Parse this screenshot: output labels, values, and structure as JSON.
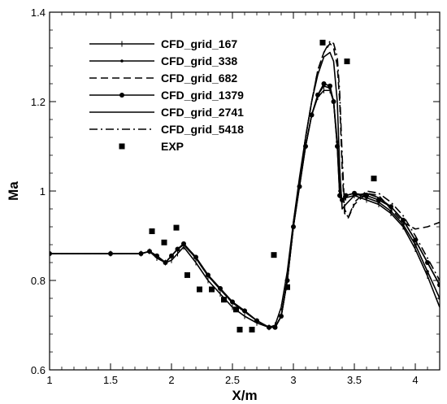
{
  "chart_data": {
    "type": "line",
    "xlabel": "X/m",
    "ylabel": "Ma",
    "xlim": [
      1,
      4.2
    ],
    "ylim": [
      0.6,
      1.4
    ],
    "xticks": [
      "1",
      "1.5",
      "2",
      "2.5",
      "3",
      "3.5",
      "4"
    ],
    "yticks": [
      "0.6",
      "0.8",
      "1",
      "1.2",
      "1.4"
    ],
    "grid": false,
    "legend_position": "top-left",
    "series": [
      {
        "name": "CFD_grid_167",
        "style": "solid",
        "marker": "tick",
        "color": "#000000",
        "x": [
          1.0,
          1.5,
          1.75,
          1.82,
          1.88,
          1.95,
          2.0,
          2.05,
          2.1,
          2.2,
          2.3,
          2.4,
          2.5,
          2.6,
          2.7,
          2.8,
          2.85,
          2.9,
          2.95,
          3.0,
          3.05,
          3.1,
          3.15,
          3.2,
          3.25,
          3.3,
          3.33,
          3.36,
          3.38,
          3.4,
          3.43,
          3.5,
          3.6,
          3.7,
          3.8,
          3.9,
          4.0,
          4.1,
          4.2
        ],
        "y": [
          0.86,
          0.86,
          0.86,
          0.865,
          0.85,
          0.84,
          0.845,
          0.86,
          0.875,
          0.84,
          0.8,
          0.77,
          0.74,
          0.72,
          0.705,
          0.695,
          0.7,
          0.74,
          0.82,
          0.93,
          1.02,
          1.1,
          1.17,
          1.21,
          1.225,
          1.225,
          1.2,
          1.1,
          0.99,
          0.975,
          0.985,
          0.99,
          0.98,
          0.97,
          0.95,
          0.92,
          0.87,
          0.81,
          0.74
        ]
      },
      {
        "name": "CFD_grid_338",
        "style": "solid",
        "marker": "dot",
        "color": "#000000",
        "x": [
          1.0,
          1.5,
          1.75,
          1.82,
          1.88,
          1.95,
          2.0,
          2.05,
          2.1,
          2.2,
          2.3,
          2.4,
          2.5,
          2.6,
          2.7,
          2.8,
          2.85,
          2.9,
          2.95,
          3.0,
          3.05,
          3.1,
          3.15,
          3.2,
          3.25,
          3.3,
          3.33,
          3.36,
          3.38,
          3.4,
          3.43,
          3.5,
          3.6,
          3.7,
          3.8,
          3.9,
          4.0,
          4.1,
          4.2
        ],
        "y": [
          0.86,
          0.86,
          0.86,
          0.865,
          0.855,
          0.84,
          0.855,
          0.87,
          0.88,
          0.85,
          0.81,
          0.78,
          0.75,
          0.73,
          0.71,
          0.695,
          0.695,
          0.72,
          0.8,
          0.92,
          1.01,
          1.1,
          1.17,
          1.215,
          1.235,
          1.23,
          1.2,
          1.11,
          1.0,
          0.98,
          0.99,
          0.995,
          0.985,
          0.975,
          0.955,
          0.925,
          0.88,
          0.82,
          0.76
        ]
      },
      {
        "name": "CFD_grid_682",
        "style": "dashed",
        "marker": "none",
        "color": "#000000",
        "x": [
          1.0,
          1.5,
          1.75,
          1.82,
          1.88,
          1.95,
          2.0,
          2.05,
          2.1,
          2.2,
          2.3,
          2.4,
          2.5,
          2.6,
          2.7,
          2.8,
          2.85,
          2.9,
          2.95,
          3.0,
          3.05,
          3.1,
          3.15,
          3.2,
          3.25,
          3.3,
          3.33,
          3.36,
          3.38,
          3.4,
          3.42,
          3.45,
          3.5,
          3.6,
          3.7,
          3.8,
          3.9,
          4.0,
          4.1,
          4.2
        ],
        "y": [
          0.86,
          0.86,
          0.86,
          0.865,
          0.855,
          0.84,
          0.855,
          0.87,
          0.88,
          0.85,
          0.81,
          0.78,
          0.75,
          0.73,
          0.71,
          0.695,
          0.695,
          0.72,
          0.8,
          0.92,
          1.02,
          1.12,
          1.2,
          1.27,
          1.31,
          1.33,
          1.32,
          1.28,
          1.2,
          1.05,
          0.95,
          0.94,
          0.97,
          0.995,
          0.99,
          0.96,
          0.93,
          0.915,
          0.92,
          0.93
        ]
      },
      {
        "name": "CFD_grid_1379",
        "style": "solid",
        "marker": "filled-dot",
        "color": "#000000",
        "x": [
          1.0,
          1.5,
          1.75,
          1.82,
          1.88,
          1.95,
          2.0,
          2.05,
          2.1,
          2.2,
          2.3,
          2.4,
          2.5,
          2.6,
          2.7,
          2.8,
          2.85,
          2.9,
          2.95,
          3.0,
          3.05,
          3.1,
          3.15,
          3.2,
          3.25,
          3.3,
          3.33,
          3.36,
          3.38,
          3.4,
          3.43,
          3.5,
          3.6,
          3.7,
          3.8,
          3.9,
          4.0,
          4.1,
          4.2
        ],
        "y": [
          0.86,
          0.86,
          0.86,
          0.865,
          0.855,
          0.84,
          0.855,
          0.87,
          0.882,
          0.852,
          0.812,
          0.782,
          0.752,
          0.732,
          0.71,
          0.695,
          0.695,
          0.72,
          0.8,
          0.92,
          1.01,
          1.1,
          1.17,
          1.215,
          1.24,
          1.235,
          1.2,
          1.1,
          0.99,
          0.98,
          0.99,
          0.995,
          0.99,
          0.98,
          0.965,
          0.935,
          0.89,
          0.84,
          0.79
        ]
      },
      {
        "name": "CFD_grid_2741",
        "style": "solid",
        "marker": "none",
        "color": "#000000",
        "x": [
          1.0,
          1.5,
          1.75,
          1.82,
          1.88,
          1.95,
          2.0,
          2.05,
          2.1,
          2.2,
          2.3,
          2.4,
          2.5,
          2.6,
          2.7,
          2.8,
          2.85,
          2.9,
          2.95,
          3.0,
          3.05,
          3.1,
          3.15,
          3.2,
          3.25,
          3.3,
          3.33,
          3.36,
          3.38,
          3.4,
          3.43,
          3.5,
          3.6,
          3.7,
          3.8,
          3.9,
          4.0,
          4.1,
          4.2
        ],
        "y": [
          0.86,
          0.86,
          0.86,
          0.865,
          0.855,
          0.84,
          0.855,
          0.87,
          0.882,
          0.852,
          0.812,
          0.782,
          0.752,
          0.732,
          0.71,
          0.695,
          0.695,
          0.72,
          0.8,
          0.93,
          1.03,
          1.12,
          1.2,
          1.26,
          1.3,
          1.31,
          1.29,
          1.2,
          1.05,
          0.96,
          0.97,
          0.99,
          0.995,
          0.985,
          0.965,
          0.935,
          0.89,
          0.84,
          0.79
        ]
      },
      {
        "name": "CFD_grid_5418",
        "style": "dashdot",
        "marker": "none",
        "color": "#000000",
        "x": [
          1.0,
          1.5,
          1.75,
          1.82,
          1.88,
          1.95,
          2.0,
          2.05,
          2.1,
          2.2,
          2.3,
          2.4,
          2.5,
          2.6,
          2.7,
          2.8,
          2.85,
          2.9,
          2.95,
          3.0,
          3.05,
          3.1,
          3.15,
          3.2,
          3.25,
          3.3,
          3.33,
          3.36,
          3.38,
          3.4,
          3.42,
          3.45,
          3.5,
          3.6,
          3.7,
          3.8,
          3.9,
          4.0,
          4.1,
          4.2
        ],
        "y": [
          0.86,
          0.86,
          0.86,
          0.865,
          0.855,
          0.84,
          0.855,
          0.87,
          0.882,
          0.852,
          0.812,
          0.782,
          0.752,
          0.732,
          0.71,
          0.695,
          0.695,
          0.72,
          0.8,
          0.92,
          1.02,
          1.12,
          1.2,
          1.27,
          1.31,
          1.335,
          1.33,
          1.3,
          1.22,
          1.08,
          0.96,
          0.94,
          0.975,
          1.0,
          0.995,
          0.975,
          0.945,
          0.9,
          0.85,
          0.8
        ]
      },
      {
        "name": "EXP",
        "style": "none",
        "marker": "square",
        "color": "#000000",
        "x": [
          1.84,
          1.94,
          2.04,
          2.13,
          2.23,
          2.33,
          2.43,
          2.53,
          2.56,
          2.66,
          2.84,
          2.95,
          3.24,
          3.44,
          3.66
        ],
        "y": [
          0.91,
          0.885,
          0.918,
          0.812,
          0.78,
          0.78,
          0.757,
          0.735,
          0.69,
          0.69,
          0.857,
          0.785,
          1.332,
          1.29,
          1.028
        ]
      }
    ]
  }
}
